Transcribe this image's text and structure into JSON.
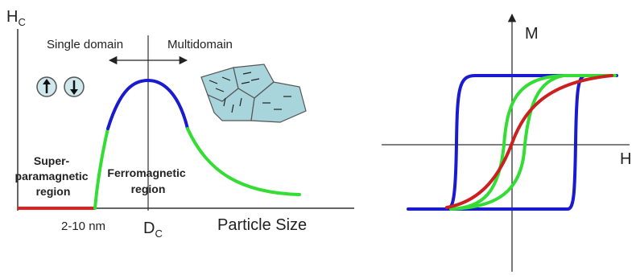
{
  "left_diagram": {
    "y_axis_label": "H",
    "y_axis_sub": "C",
    "single_domain_label": "Single domain",
    "multidomain_label": "Multidomain",
    "super_label_lines": [
      "Super-",
      "paramagnetic",
      "region"
    ],
    "ferro_label_lines": [
      "Ferromagnetic",
      "region"
    ],
    "size_tick_label": "2-10 nm",
    "dc_label": "D",
    "dc_sub": "C",
    "x_axis_label": "Particle Size",
    "curve_colors": {
      "superparamagnetic": "#e02020",
      "rising": "#33dd33",
      "peak": "#1a1ad0",
      "tail": "#33dd33"
    },
    "icons": [
      "spin-up-icon",
      "spin-down-icon",
      "magnetic-domains-icon"
    ]
  },
  "right_diagram": {
    "y_axis_label": "M",
    "x_axis_label": "H",
    "loops": [
      {
        "name_key": "wide",
        "color": "#1a1ad0"
      },
      {
        "name_key": "narrow",
        "color": "#33dd33"
      },
      {
        "name_key": "anhysteretic",
        "color": "#cc2020"
      }
    ]
  }
}
